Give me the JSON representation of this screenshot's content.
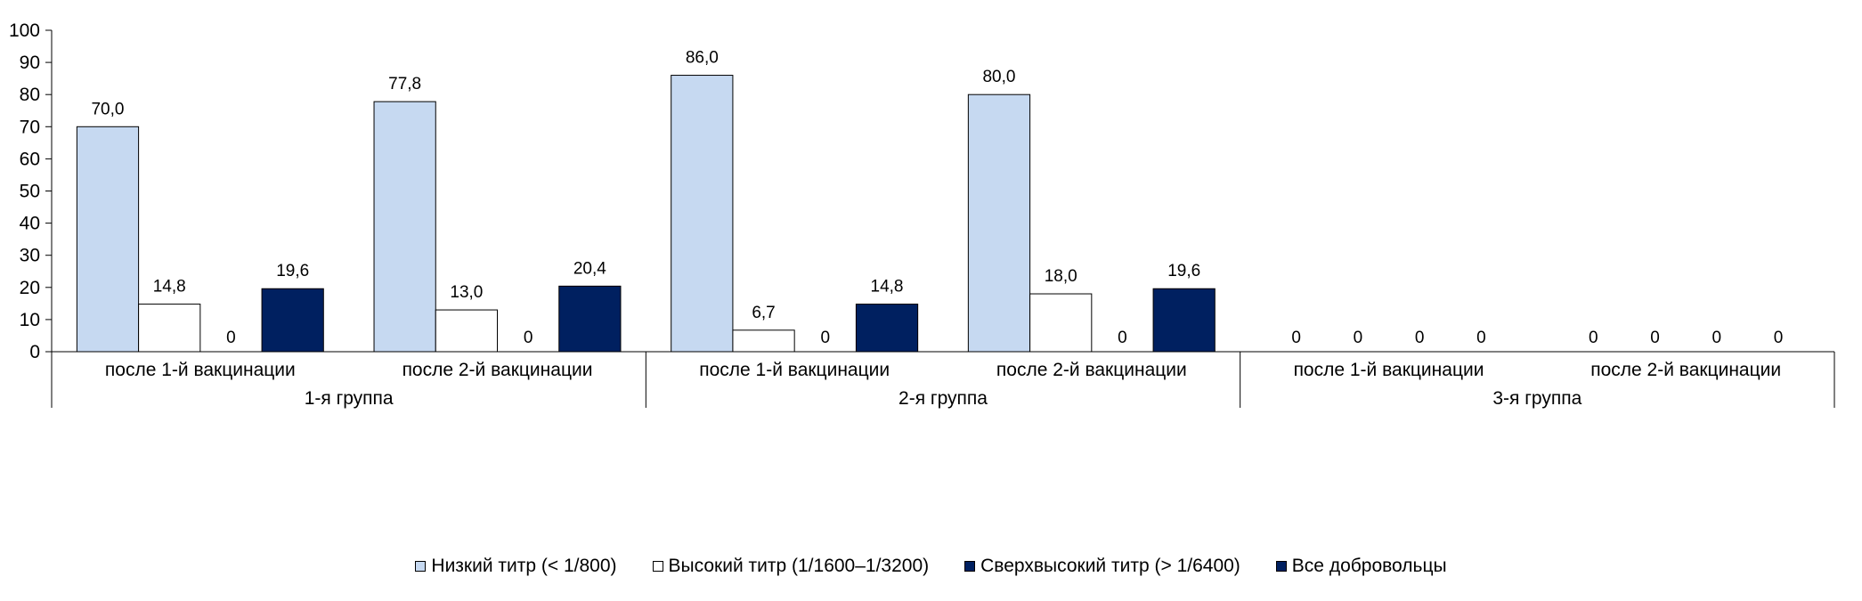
{
  "chart_data": {
    "type": "bar",
    "ylim": [
      0,
      100
    ],
    "yticks": [
      0,
      10,
      20,
      30,
      40,
      50,
      60,
      70,
      80,
      90,
      100
    ],
    "groups": [
      {
        "label": "1-я группа",
        "categories": [
          {
            "label": "после 1-й вакцинации",
            "values": [
              70.0,
              14.8,
              0,
              19.6
            ],
            "labels": [
              "70,0",
              "14,8",
              "0",
              "19,6"
            ]
          },
          {
            "label": "после 2-й вакцинации",
            "values": [
              77.8,
              13.0,
              0,
              20.4
            ],
            "labels": [
              "77,8",
              "13,0",
              "0",
              "20,4"
            ]
          }
        ]
      },
      {
        "label": "2-я группа",
        "categories": [
          {
            "label": "после 1-й вакцинации",
            "values": [
              86.0,
              6.7,
              0,
              14.8
            ],
            "labels": [
              "86,0",
              "6,7",
              "0",
              "14,8"
            ]
          },
          {
            "label": "после 2-й вакцинации",
            "values": [
              80.0,
              18.0,
              0,
              19.6
            ],
            "labels": [
              "80,0",
              "18,0",
              "0",
              "19,6"
            ]
          }
        ]
      },
      {
        "label": "3-я группа",
        "categories": [
          {
            "label": "после 1-й вакцинации",
            "values": [
              0,
              0,
              0,
              0
            ],
            "labels": [
              "0",
              "0",
              "0",
              "0"
            ]
          },
          {
            "label": "после 2-й вакцинации",
            "values": [
              0,
              0,
              0,
              0
            ],
            "labels": [
              "0",
              "0",
              "0",
              "0"
            ]
          }
        ]
      }
    ],
    "series": [
      {
        "name": "Низкий титр (< 1/800)",
        "color": "#c6d9f1"
      },
      {
        "name": "Высокий титр (1/1600–1/3200)",
        "color": "#ffffff"
      },
      {
        "name": "Сверхвысокий титр (> 1/6400)",
        "color": "#002060"
      },
      {
        "name": "Все добровольцы",
        "color": "#002060"
      }
    ],
    "legend_position": "bottom",
    "grid": false
  }
}
